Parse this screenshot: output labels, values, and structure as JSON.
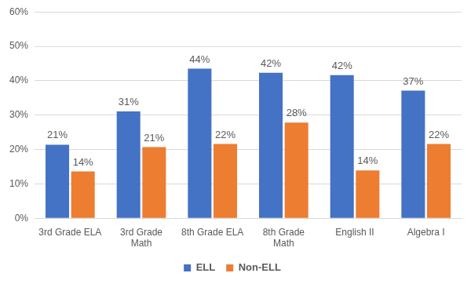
{
  "chart_data": {
    "type": "bar",
    "categories": [
      "3rd Grade ELA",
      "3rd Grade Math",
      "8th Grade ELA",
      "8th Grade Math",
      "English II",
      "Algebra I"
    ],
    "series": [
      {
        "name": "ELL",
        "color": "#4472c4",
        "values": [
          21.4,
          31.1,
          43.5,
          42.3,
          41.6,
          37.1
        ],
        "value_labels": [
          "21%",
          "31%",
          "44%",
          "42%",
          "42%",
          "37%"
        ]
      },
      {
        "name": "Non-ELL",
        "color": "#ed7d31",
        "values": [
          13.6,
          20.7,
          21.6,
          27.8,
          13.9,
          21.6
        ],
        "value_labels": [
          "14%",
          "21%",
          "22%",
          "28%",
          "14%",
          "22%"
        ]
      }
    ],
    "ylim": [
      0,
      60
    ],
    "yticks": [
      {
        "value": 0,
        "label": "0%"
      },
      {
        "value": 10,
        "label": "10%"
      },
      {
        "value": 20,
        "label": "20%"
      },
      {
        "value": 30,
        "label": "30%"
      },
      {
        "value": 40,
        "label": "40%"
      },
      {
        "value": 50,
        "label": "50%"
      },
      {
        "value": 60,
        "label": "60%"
      }
    ],
    "grid": true,
    "legend": "bottom",
    "data_labels": true
  }
}
